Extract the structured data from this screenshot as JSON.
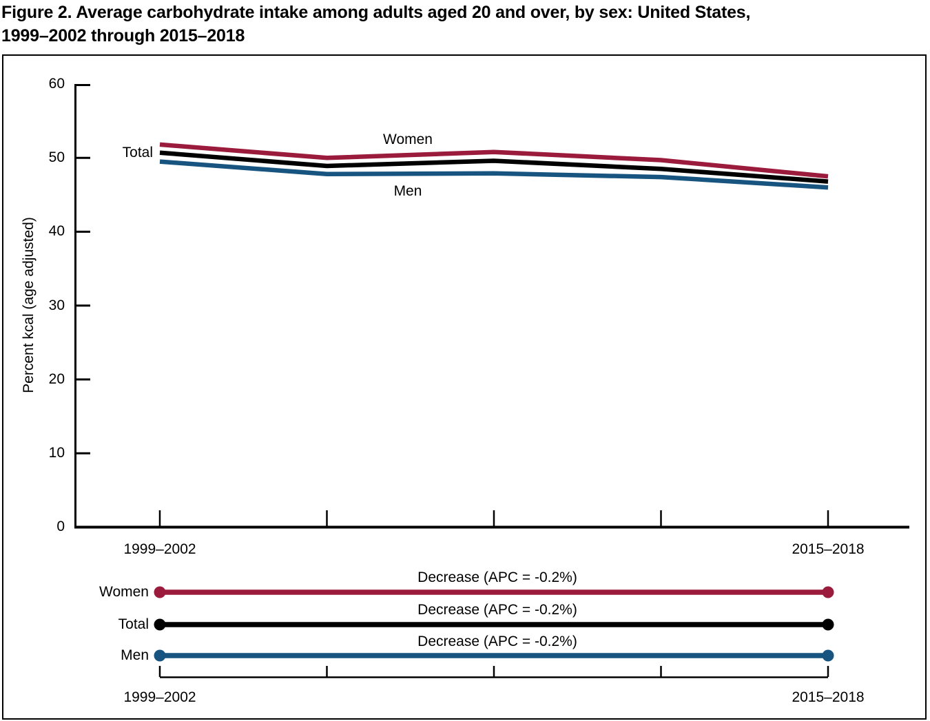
{
  "figure": {
    "title_line1": "Figure 2. Average carbohydrate intake among adults aged 20 and over, by sex: United States,",
    "title_line2": "1999–2002 through 2015–2018"
  },
  "chart_data": {
    "type": "line",
    "title": "Average carbohydrate intake among adults aged 20 and over, by sex",
    "ylabel": "Percent kcal (age adjusted)",
    "ylim": [
      0,
      60
    ],
    "ytick_labels": [
      "0",
      "10",
      "20",
      "30",
      "40",
      "50",
      "60"
    ],
    "x_tick_count": 5,
    "x_first_label": "1999–2002",
    "x_last_label": "2015–2018",
    "grid": false,
    "legend_position": "bottom-trend-panel",
    "series": [
      {
        "name": "Women",
        "color": "#9B1B3C",
        "values": [
          51.8,
          50.0,
          50.8,
          49.7,
          47.5
        ],
        "trend_annotation": "Decrease (APC = -0.2%)"
      },
      {
        "name": "Total",
        "color": "#000000",
        "values": [
          50.7,
          48.9,
          49.6,
          48.5,
          46.8
        ],
        "trend_annotation": "Decrease (APC = -0.2%)"
      },
      {
        "name": "Men",
        "color": "#17547F",
        "values": [
          49.5,
          47.8,
          47.9,
          47.4,
          46.0
        ],
        "trend_annotation": "Decrease (APC = -0.2%)"
      }
    ]
  }
}
